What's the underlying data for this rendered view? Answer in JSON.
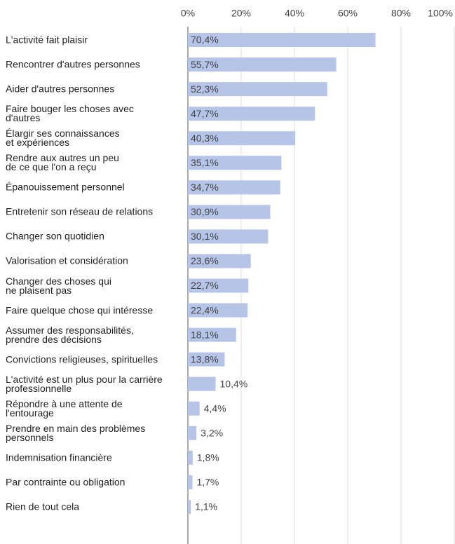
{
  "chart_data": {
    "type": "barh",
    "categories": [
      "L'activité fait plaisir",
      "Rencontrer d'autres personnes",
      "Aider d'autres personnes",
      "Faire bouger les choses avec\nd'autres",
      "Élargir ses connaissances\net expériences",
      "Rendre aux autres un peu\nde ce que l'on a reçu",
      "Épanouissement personnel",
      "Entretenir son réseau de relations",
      "Changer son quotidien",
      "Valorisation et considération",
      "Changer des choses qui\nne plaisent pas",
      "Faire quelque chose qui intéresse",
      "Assumer des responsabilités,\nprendre des décisions",
      "Convictions religieuses, spirituelles",
      "L'activité est un plus pour la carrière\nprofessionnelle",
      "Répondre à une attente de\nl'entourage",
      "Prendre en main des problèmes\npersonnels",
      "Indemnisation financière",
      "Par contrainte ou obligation",
      "Rien de tout cela"
    ],
    "values": [
      70.4,
      55.7,
      52.3,
      47.7,
      40.3,
      35.1,
      34.7,
      30.9,
      30.1,
      23.6,
      22.7,
      22.4,
      18.1,
      13.8,
      10.4,
      4.4,
      3.2,
      1.8,
      1.7,
      1.1
    ],
    "value_labels": [
      "70,4%",
      "55,7%",
      "52,3%",
      "47,7%",
      "40,3%",
      "35,1%",
      "34,7%",
      "30,9%",
      "30,1%",
      "23,6%",
      "22,7%",
      "22,4%",
      "18,1%",
      "13,8%",
      "10,4%",
      "4,4%",
      "3,2%",
      "1,8%",
      "1,7%",
      "1,1%"
    ],
    "color": "#b6c4e7",
    "xlim": [
      0,
      100
    ],
    "xticks": [
      {
        "value": 0,
        "label": "0%"
      },
      {
        "value": 20,
        "label": "20%"
      },
      {
        "value": 40,
        "label": "40%"
      },
      {
        "value": 60,
        "label": "60%"
      },
      {
        "value": 80,
        "label": "80%"
      },
      {
        "value": 100,
        "label": "100%"
      }
    ],
    "grid": true
  }
}
